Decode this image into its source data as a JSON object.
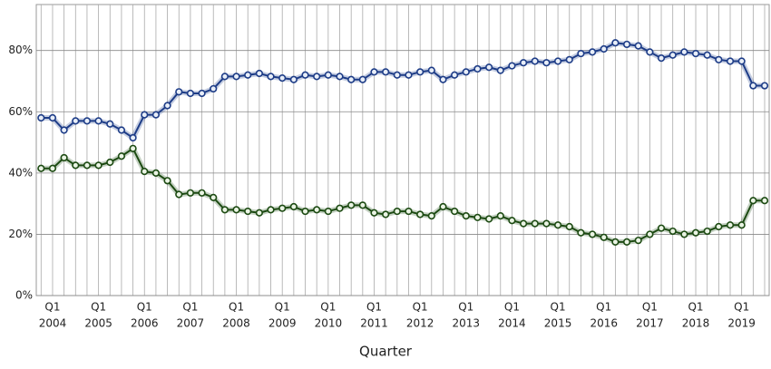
{
  "chart_data": {
    "type": "line",
    "xlabel": "Quarter",
    "categories": [
      null,
      {
        "quarter": "Q1",
        "year": "2004"
      },
      null,
      null,
      null,
      {
        "quarter": "Q1",
        "year": "2005"
      },
      null,
      null,
      null,
      {
        "quarter": "Q1",
        "year": "2006"
      },
      null,
      null,
      null,
      {
        "quarter": "Q1",
        "year": "2007"
      },
      null,
      null,
      null,
      {
        "quarter": "Q1",
        "year": "2008"
      },
      null,
      null,
      null,
      {
        "quarter": "Q1",
        "year": "2009"
      },
      null,
      null,
      null,
      {
        "quarter": "Q1",
        "year": "2010"
      },
      null,
      null,
      null,
      {
        "quarter": "Q1",
        "year": "2011"
      },
      null,
      null,
      null,
      {
        "quarter": "Q1",
        "year": "2012"
      },
      null,
      null,
      null,
      {
        "quarter": "Q1",
        "year": "2013"
      },
      null,
      null,
      null,
      {
        "quarter": "Q1",
        "year": "2014"
      },
      null,
      null,
      null,
      {
        "quarter": "Q1",
        "year": "2015"
      },
      null,
      null,
      null,
      {
        "quarter": "Q1",
        "year": "2016"
      },
      null,
      null,
      null,
      {
        "quarter": "Q1",
        "year": "2017"
      },
      null,
      null,
      null,
      {
        "quarter": "Q1",
        "year": "2018"
      },
      null,
      null,
      null,
      {
        "quarter": "Q1",
        "year": "2019"
      },
      null,
      null
    ],
    "series": [
      {
        "color": "#1d3c87",
        "marker_fill": "#e8eef8",
        "values": [
          58,
          58,
          54,
          57,
          57,
          57,
          56,
          54,
          51.5,
          59,
          59,
          62,
          66.5,
          66,
          66,
          67.5,
          71.5,
          71.5,
          72,
          72.5,
          71.5,
          71,
          70.5,
          72,
          71.5,
          72,
          71.5,
          70.5,
          70.5,
          73,
          73,
          72,
          72,
          73,
          73.5,
          70.5,
          72,
          73,
          74,
          74.5,
          73.5,
          75,
          76,
          76.5,
          76,
          76.5,
          77,
          79,
          79.5,
          80.5,
          82.5,
          82,
          81.5,
          79.5,
          77.5,
          78.5,
          79.5,
          79,
          78.5,
          77,
          76.5,
          76.5,
          68.5,
          68.5
        ]
      },
      {
        "color": "#1c4a12",
        "marker_fill": "#eaf4e4",
        "values": [
          41.5,
          41.5,
          45,
          42.5,
          42.5,
          42.5,
          43.5,
          45.5,
          48,
          40.5,
          40,
          37.5,
          33,
          33.5,
          33.5,
          32,
          28,
          28,
          27.5,
          27,
          28,
          28.5,
          29,
          27.5,
          28,
          27.5,
          28.5,
          29.5,
          29.5,
          27,
          26.5,
          27.5,
          27.5,
          26.5,
          26,
          29,
          27.5,
          26,
          25.5,
          25,
          26,
          24.5,
          23.5,
          23.5,
          23.5,
          23,
          22.5,
          20.5,
          20,
          19,
          17.5,
          17.5,
          18,
          20,
          22,
          21,
          20,
          20.5,
          21,
          22.5,
          23,
          23,
          31,
          31
        ]
      }
    ],
    "ylim": [
      0,
      95
    ],
    "yticks": [
      {
        "value": 0,
        "label": "0%"
      },
      {
        "value": 20,
        "label": "20%"
      },
      {
        "value": 40,
        "label": "40%"
      },
      {
        "value": 60,
        "label": "60%"
      },
      {
        "value": 80,
        "label": "80%"
      }
    ],
    "grid": true
  }
}
